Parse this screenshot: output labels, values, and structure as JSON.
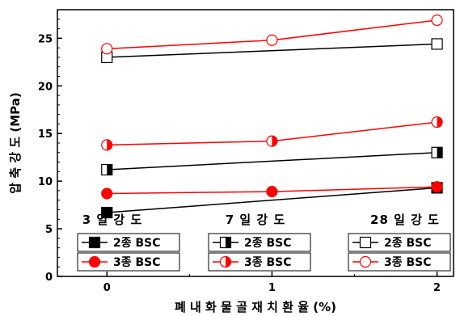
{
  "chart_data": {
    "type": "line",
    "xlabel": "폐 내 화 물 골 재 치 환 율 (%)",
    "ylabel": "압 축 강 도 (MPa)",
    "x": [
      0,
      1,
      2
    ],
    "xlim": [
      -0.3,
      2.1
    ],
    "ylim": [
      0,
      28
    ],
    "xticks": [
      0,
      1,
      2
    ],
    "yticks": [
      0,
      5,
      10,
      15,
      20,
      25
    ],
    "grid": false,
    "colors": {
      "2종": "#000000",
      "3종": "#ff0000"
    },
    "groups": [
      {
        "title": "3 일 강 도",
        "legend_position": "lower-left",
        "series": [
          {
            "name": "2종 BSC",
            "marker": "square-filled",
            "color": "#000000",
            "values": [
              6.7,
              null,
              9.3
            ]
          },
          {
            "name": "3종 BSC",
            "marker": "circle-filled",
            "color": "#ff0000",
            "values": [
              8.7,
              8.9,
              9.4
            ]
          }
        ]
      },
      {
        "title": "7 일 강 도",
        "legend_position": "lower-center",
        "series": [
          {
            "name": "2종 BSC",
            "marker": "square-half",
            "color": "#000000",
            "values": [
              11.2,
              null,
              13.0
            ]
          },
          {
            "name": "3종 BSC",
            "marker": "circle-half",
            "color": "#ff0000",
            "values": [
              13.8,
              14.2,
              16.2
            ]
          }
        ]
      },
      {
        "title": "28 일 강 도",
        "legend_position": "lower-right",
        "series": [
          {
            "name": "2종 BSC",
            "marker": "square-open",
            "color": "#000000",
            "values": [
              23.0,
              null,
              24.4
            ]
          },
          {
            "name": "3종 BSC",
            "marker": "circle-open",
            "color": "#ff0000",
            "values": [
              23.9,
              24.8,
              26.9
            ]
          }
        ]
      }
    ]
  }
}
